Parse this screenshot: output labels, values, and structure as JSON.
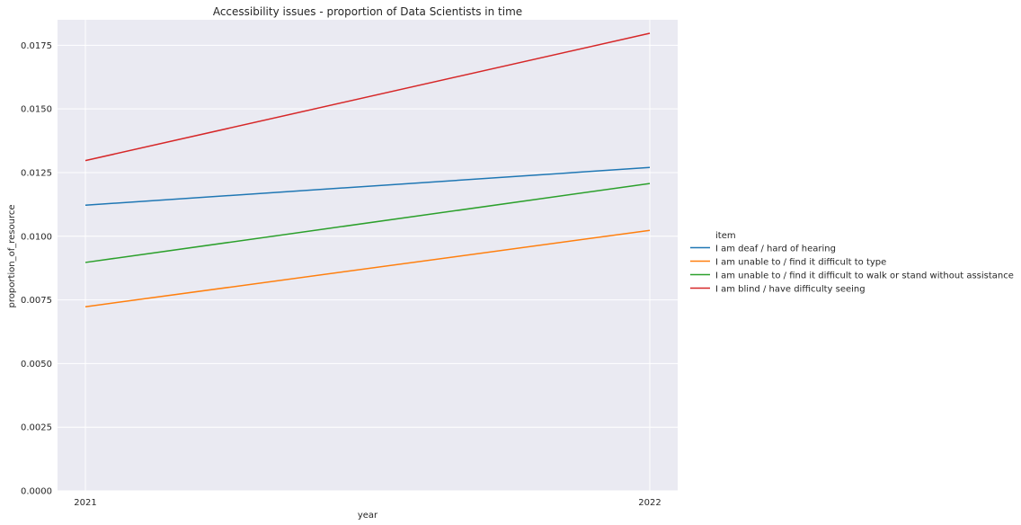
{
  "chart_data": {
    "type": "line",
    "title": "Accessibility issues - proportion of Data Scientists in time",
    "xlabel": "year",
    "ylabel": "proportion_of_resource",
    "x": [
      "2021",
      "2022"
    ],
    "ylim": [
      0,
      0.0185
    ],
    "yticks": [
      "0.0000",
      "0.0025",
      "0.0050",
      "0.0075",
      "0.0100",
      "0.0125",
      "0.0150",
      "0.0175"
    ],
    "grid": true,
    "legend_title": "item",
    "legend_position": "right",
    "series": [
      {
        "name": "I am deaf / hard of hearing",
        "color": "#1f77b4",
        "values": [
          0.01122,
          0.0127
        ]
      },
      {
        "name": "I am unable to / find it difficult to type",
        "color": "#ff7f0e",
        "values": [
          0.00723,
          0.01023
        ]
      },
      {
        "name": "I am unable to / find it difficult to walk or stand without assistance",
        "color": "#2ca02c",
        "values": [
          0.00897,
          0.01207
        ]
      },
      {
        "name": "I am blind / have difficulty seeing",
        "color": "#d62728",
        "values": [
          0.01297,
          0.01797
        ]
      }
    ],
    "colors": {
      "plot_background": "#eaeaf2",
      "grid": "#ffffff"
    }
  }
}
